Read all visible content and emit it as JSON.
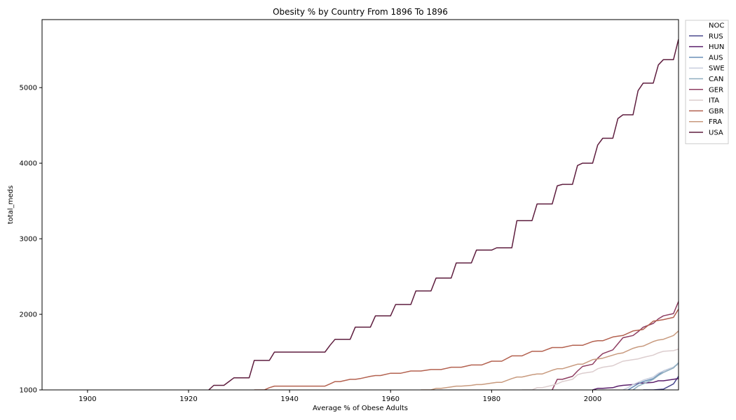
{
  "chart_data": {
    "type": "line",
    "title": "Obesity % by Country From 1896 To 1896",
    "xlabel": "Average % of Obese Adults",
    "ylabel": "total_meds",
    "xlim": [
      1891,
      2017
    ],
    "ylim": [
      1000,
      5900
    ],
    "xticks": [
      1900,
      1920,
      1940,
      1960,
      1980,
      2000
    ],
    "yticks": [
      1000,
      2000,
      3000,
      4000,
      5000
    ],
    "grid": false,
    "legend_position": "outside-top-right",
    "series": [
      {
        "name": "NOC",
        "color": "#ffffff",
        "x": [],
        "y": []
      },
      {
        "name": "RUS",
        "color": "#4b4a8e",
        "x": [
          2010,
          2012,
          2014,
          2016,
          2017
        ],
        "y": [
          1000,
          1000,
          1010,
          1080,
          1180
        ]
      },
      {
        "name": "HUN",
        "color": "#5a1f6b",
        "x": [
          2000,
          2001,
          2002,
          2004,
          2005,
          2006,
          2008,
          2009,
          2010,
          2012,
          2013,
          2014,
          2016,
          2017
        ],
        "y": [
          1000,
          1020,
          1020,
          1030,
          1050,
          1060,
          1070,
          1090,
          1090,
          1100,
          1120,
          1120,
          1140,
          1150
        ]
      },
      {
        "name": "AUS",
        "color": "#6a8fb8",
        "x": [
          2007,
          2008,
          2009,
          2010,
          2012,
          2013,
          2014,
          2016,
          2017
        ],
        "y": [
          1000,
          1040,
          1080,
          1110,
          1150,
          1200,
          1250,
          1300,
          1350
        ]
      },
      {
        "name": "SWE",
        "color": "#c9cfdf",
        "x": [
          2006,
          2007,
          2008,
          2009,
          2010,
          2012,
          2013,
          2014,
          2016,
          2017
        ],
        "y": [
          1000,
          1030,
          1070,
          1100,
          1130,
          1170,
          1220,
          1250,
          1300,
          1340
        ]
      },
      {
        "name": "CAN",
        "color": "#8faebf",
        "x": [
          2008,
          2009,
          2010,
          2012,
          2013,
          2014,
          2016,
          2017
        ],
        "y": [
          1000,
          1050,
          1080,
          1140,
          1190,
          1230,
          1290,
          1360
        ]
      },
      {
        "name": "GER",
        "color": "#8e3d61",
        "x": [
          1992,
          1993,
          1994,
          1996,
          1997,
          1998,
          2000,
          2001,
          2002,
          2004,
          2005,
          2006,
          2008,
          2009,
          2010,
          2012,
          2013,
          2014,
          2016,
          2017
        ],
        "y": [
          1000,
          1140,
          1140,
          1180,
          1250,
          1310,
          1340,
          1420,
          1480,
          1530,
          1610,
          1690,
          1720,
          1770,
          1830,
          1880,
          1940,
          1980,
          2010,
          2170
        ]
      },
      {
        "name": "ITA",
        "color": "#dccdce",
        "x": [
          1986,
          1988,
          1989,
          1990,
          1992,
          1993,
          1994,
          1996,
          1997,
          1998,
          2000,
          2001,
          2002,
          2004,
          2005,
          2006,
          2008,
          2009,
          2010,
          2012,
          2013,
          2014,
          2016,
          2017
        ],
        "y": [
          1000,
          1000,
          1030,
          1030,
          1060,
          1080,
          1110,
          1140,
          1200,
          1220,
          1240,
          1280,
          1300,
          1320,
          1350,
          1380,
          1400,
          1410,
          1430,
          1460,
          1490,
          1510,
          1520,
          1540
        ]
      },
      {
        "name": "GBR",
        "color": "#b3614f",
        "x": [
          1933,
          1934,
          1935,
          1936,
          1937,
          1938,
          1940,
          1941,
          1942,
          1944,
          1945,
          1946,
          1947,
          1948,
          1949,
          1950,
          1952,
          1953,
          1954,
          1956,
          1957,
          1958,
          1960,
          1961,
          1962,
          1964,
          1965,
          1966,
          1968,
          1969,
          1970,
          1972,
          1973,
          1974,
          1976,
          1977,
          1978,
          1980,
          1981,
          1982,
          1984,
          1985,
          1986,
          1988,
          1989,
          1990,
          1992,
          1993,
          1994,
          1996,
          1997,
          1998,
          2000,
          2001,
          2002,
          2004,
          2005,
          2006,
          2008,
          2009,
          2010,
          2012,
          2013,
          2014,
          2016,
          2017
        ],
        "y": [
          1000,
          1000,
          1000,
          1030,
          1050,
          1050,
          1050,
          1050,
          1050,
          1050,
          1050,
          1050,
          1050,
          1080,
          1110,
          1110,
          1140,
          1140,
          1150,
          1180,
          1190,
          1190,
          1220,
          1220,
          1220,
          1250,
          1250,
          1250,
          1270,
          1270,
          1270,
          1300,
          1300,
          1300,
          1330,
          1330,
          1330,
          1380,
          1380,
          1380,
          1450,
          1450,
          1450,
          1510,
          1510,
          1510,
          1560,
          1560,
          1560,
          1590,
          1590,
          1590,
          1640,
          1650,
          1650,
          1700,
          1710,
          1720,
          1780,
          1790,
          1800,
          1910,
          1920,
          1930,
          1960,
          2070
        ]
      },
      {
        "name": "FRA",
        "color": "#c89a7e",
        "x": [
          1966,
          1968,
          1969,
          1970,
          1972,
          1973,
          1974,
          1976,
          1977,
          1978,
          1980,
          1981,
          1982,
          1984,
          1985,
          1986,
          1988,
          1989,
          1990,
          1992,
          1993,
          1994,
          1996,
          1997,
          1998,
          2000,
          2001,
          2002,
          2004,
          2005,
          2006,
          2008,
          2009,
          2010,
          2012,
          2013,
          2014,
          2016,
          2017
        ],
        "y": [
          1000,
          1000,
          1020,
          1020,
          1040,
          1050,
          1050,
          1060,
          1070,
          1070,
          1090,
          1100,
          1100,
          1150,
          1170,
          1170,
          1200,
          1210,
          1210,
          1260,
          1280,
          1280,
          1320,
          1340,
          1340,
          1400,
          1410,
          1420,
          1460,
          1480,
          1490,
          1550,
          1570,
          1580,
          1640,
          1660,
          1670,
          1720,
          1780
        ]
      },
      {
        "name": "USA",
        "color": "#5e1d3e",
        "x": [
          1924,
          1925,
          1926,
          1927,
          1928,
          1929,
          1930,
          1932,
          1933,
          1934,
          1936,
          1937,
          1938,
          1940,
          1941,
          1942,
          1944,
          1945,
          1946,
          1947,
          1948,
          1949,
          1950,
          1952,
          1953,
          1954,
          1956,
          1957,
          1958,
          1960,
          1961,
          1962,
          1964,
          1965,
          1966,
          1968,
          1969,
          1970,
          1972,
          1973,
          1974,
          1976,
          1977,
          1978,
          1980,
          1981,
          1982,
          1984,
          1985,
          1986,
          1988,
          1989,
          1990,
          1992,
          1993,
          1994,
          1996,
          1997,
          1998,
          2000,
          2001,
          2002,
          2004,
          2005,
          2006,
          2008,
          2009,
          2010,
          2012,
          2013,
          2014,
          2016,
          2017
        ],
        "y": [
          1000,
          1060,
          1060,
          1060,
          1110,
          1160,
          1160,
          1160,
          1390,
          1390,
          1390,
          1500,
          1500,
          1500,
          1500,
          1500,
          1500,
          1500,
          1500,
          1500,
          1590,
          1670,
          1670,
          1670,
          1830,
          1830,
          1830,
          1980,
          1980,
          1980,
          2130,
          2130,
          2130,
          2310,
          2310,
          2310,
          2480,
          2480,
          2480,
          2680,
          2680,
          2680,
          2850,
          2850,
          2850,
          2880,
          2880,
          2880,
          3240,
          3240,
          3240,
          3460,
          3460,
          3460,
          3700,
          3720,
          3720,
          3970,
          4000,
          4000,
          4240,
          4330,
          4330,
          4590,
          4640,
          4640,
          4960,
          5060,
          5060,
          5300,
          5370,
          5370,
          5640
        ]
      }
    ]
  }
}
